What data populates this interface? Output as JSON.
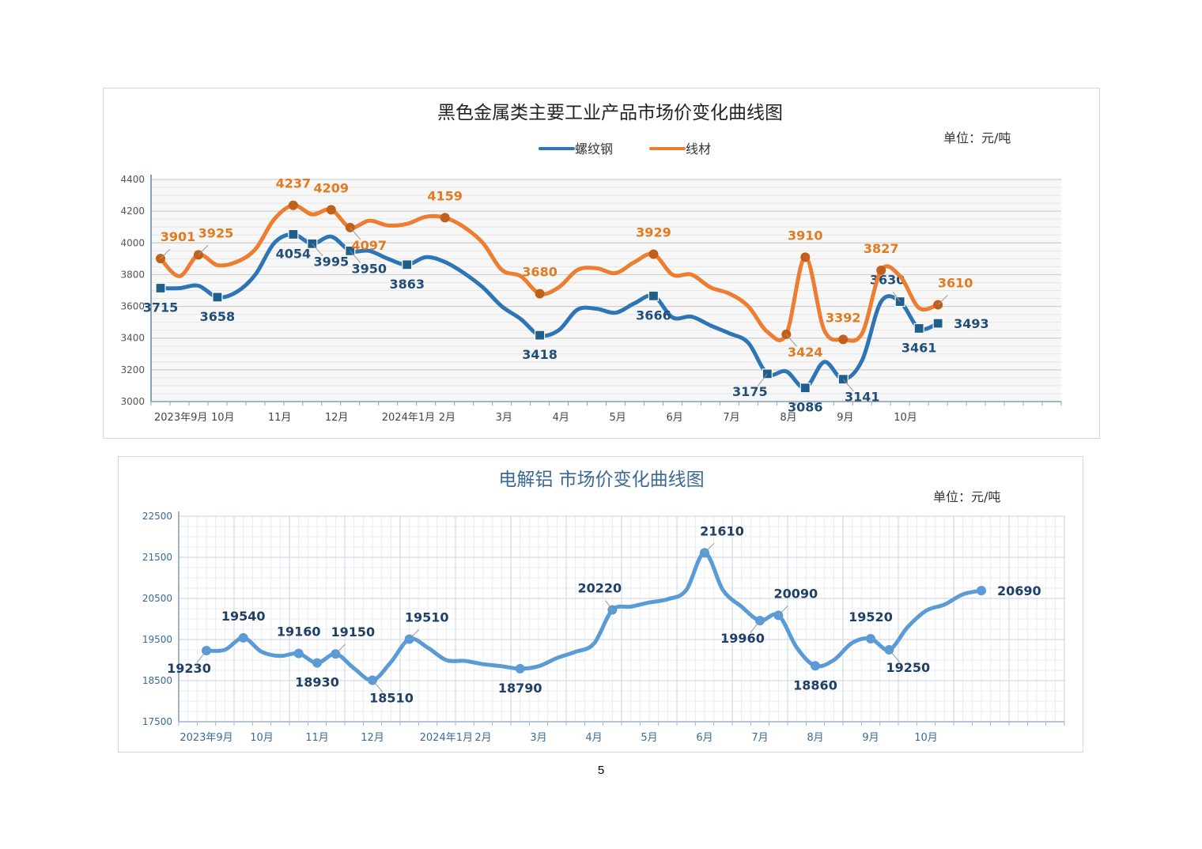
{
  "page_number": "5",
  "chart_data": [
    {
      "type": "line",
      "title": "黑色金属类主要工业产品市场价变化曲线图",
      "unit": "单位：元/吨",
      "ylim": [
        3000,
        4400
      ],
      "yticks": [
        3000,
        3200,
        3400,
        3600,
        3800,
        4000,
        4200,
        4400
      ],
      "xlim": [
        0,
        48
      ],
      "month_ticks": [
        {
          "label": "2023年9月",
          "x": 0
        },
        {
          "label": "10月",
          "x": 3
        },
        {
          "label": "11月",
          "x": 6
        },
        {
          "label": "12月",
          "x": 9
        },
        {
          "label": "2024年1月",
          "x": 12
        },
        {
          "label": "2月",
          "x": 15
        },
        {
          "label": "3月",
          "x": 18
        },
        {
          "label": "4月",
          "x": 21
        },
        {
          "label": "5月",
          "x": 24
        },
        {
          "label": "6月",
          "x": 27
        },
        {
          "label": "7月",
          "x": 30
        },
        {
          "label": "8月",
          "x": 33
        },
        {
          "label": "9月",
          "x": 36
        },
        {
          "label": "10月",
          "x": 39
        }
      ],
      "grid": true,
      "legend": "top-center",
      "series": [
        {
          "name": "螺纹钢",
          "color": "#2e75b6",
          "marker": "square",
          "points": [
            [
              0.5,
              3715
            ],
            [
              1.5,
              3715
            ],
            [
              2.5,
              3730
            ],
            [
              3.5,
              3658
            ],
            [
              4.5,
              3690
            ],
            [
              5.5,
              3800
            ],
            [
              6.5,
              4000
            ],
            [
              7.5,
              4054
            ],
            [
              8.5,
              3995
            ],
            [
              9.5,
              4040
            ],
            [
              10.5,
              3950
            ],
            [
              11.5,
              3950
            ],
            [
              12.5,
              3900
            ],
            [
              13.5,
              3863
            ],
            [
              14.5,
              3910
            ],
            [
              15.5,
              3880
            ],
            [
              16.5,
              3810
            ],
            [
              17.5,
              3720
            ],
            [
              18.5,
              3600
            ],
            [
              19.5,
              3520
            ],
            [
              20.5,
              3418
            ],
            [
              21.5,
              3450
            ],
            [
              22.5,
              3580
            ],
            [
              23.5,
              3585
            ],
            [
              24.5,
              3560
            ],
            [
              25.5,
              3620
            ],
            [
              26.5,
              3666
            ],
            [
              27.5,
              3530
            ],
            [
              28.5,
              3535
            ],
            [
              29.5,
              3480
            ],
            [
              30.5,
              3430
            ],
            [
              31.5,
              3370
            ],
            [
              32.5,
              3175
            ],
            [
              33.5,
              3190
            ],
            [
              34.5,
              3086
            ],
            [
              35.5,
              3250
            ],
            [
              36.5,
              3141
            ],
            [
              37.5,
              3260
            ],
            [
              38.5,
              3630
            ],
            [
              39.5,
              3630
            ],
            [
              40.5,
              3461
            ],
            [
              41.5,
              3493
            ]
          ],
          "labels": [
            {
              "i": 0,
              "text": "3715",
              "pos": "below"
            },
            {
              "i": 3,
              "text": "3658",
              "pos": "below"
            },
            {
              "i": 7,
              "text": "4054",
              "pos": "below"
            },
            {
              "i": 8,
              "text": "3995",
              "pos": "below-right"
            },
            {
              "i": 10,
              "text": "3950",
              "pos": "below-right"
            },
            {
              "i": 13,
              "text": "3863",
              "pos": "below"
            },
            {
              "i": 20,
              "text": "3418",
              "pos": "below"
            },
            {
              "i": 26,
              "text": "3666",
              "pos": "below"
            },
            {
              "i": 32,
              "text": "3175",
              "pos": "below-left"
            },
            {
              "i": 34,
              "text": "3086",
              "pos": "below"
            },
            {
              "i": 36,
              "text": "3141",
              "pos": "below-right"
            },
            {
              "i": 39,
              "text": "3630",
              "pos": "above-left"
            },
            {
              "i": 40,
              "text": "3461",
              "pos": "below"
            },
            {
              "i": 41,
              "text": "3493",
              "pos": "right"
            }
          ]
        },
        {
          "name": "线材",
          "color": "#ed7d31",
          "marker": "circle",
          "points": [
            [
              0.5,
              3901
            ],
            [
              1.5,
              3790
            ],
            [
              2.5,
              3925
            ],
            [
              3.5,
              3860
            ],
            [
              4.5,
              3880
            ],
            [
              5.5,
              3960
            ],
            [
              6.5,
              4150
            ],
            [
              7.5,
              4237
            ],
            [
              8.5,
              4180
            ],
            [
              9.5,
              4209
            ],
            [
              10.5,
              4097
            ],
            [
              11.5,
              4140
            ],
            [
              12.5,
              4110
            ],
            [
              13.5,
              4120
            ],
            [
              14.5,
              4165
            ],
            [
              15.5,
              4159
            ],
            [
              16.5,
              4100
            ],
            [
              17.5,
              4000
            ],
            [
              18.5,
              3830
            ],
            [
              19.5,
              3790
            ],
            [
              20.5,
              3680
            ],
            [
              21.5,
              3720
            ],
            [
              22.5,
              3830
            ],
            [
              23.5,
              3840
            ],
            [
              24.5,
              3810
            ],
            [
              25.5,
              3880
            ],
            [
              26.5,
              3929
            ],
            [
              27.5,
              3800
            ],
            [
              28.5,
              3800
            ],
            [
              29.5,
              3720
            ],
            [
              30.5,
              3680
            ],
            [
              31.5,
              3600
            ],
            [
              32.5,
              3440
            ],
            [
              33.5,
              3424
            ],
            [
              34.5,
              3910
            ],
            [
              35.5,
              3450
            ],
            [
              36.5,
              3392
            ],
            [
              37.5,
              3430
            ],
            [
              38.5,
              3827
            ],
            [
              39.5,
              3790
            ],
            [
              40.5,
              3590
            ],
            [
              41.5,
              3610
            ]
          ],
          "labels": [
            {
              "i": 0,
              "text": "3901",
              "pos": "above-right"
            },
            {
              "i": 2,
              "text": "3925",
              "pos": "above-right"
            },
            {
              "i": 7,
              "text": "4237",
              "pos": "above"
            },
            {
              "i": 9,
              "text": "4209",
              "pos": "above"
            },
            {
              "i": 10,
              "text": "4097",
              "pos": "below-right"
            },
            {
              "i": 15,
              "text": "4159",
              "pos": "above"
            },
            {
              "i": 20,
              "text": "3680",
              "pos": "above"
            },
            {
              "i": 26,
              "text": "3929",
              "pos": "above"
            },
            {
              "i": 33,
              "text": "3424",
              "pos": "below-right"
            },
            {
              "i": 34,
              "text": "3910",
              "pos": "above"
            },
            {
              "i": 36,
              "text": "3392",
              "pos": "above"
            },
            {
              "i": 38,
              "text": "3827",
              "pos": "above"
            },
            {
              "i": 41,
              "text": "3610",
              "pos": "above-right"
            }
          ]
        }
      ]
    },
    {
      "type": "line",
      "title": "电解铝  市场价变化曲线图",
      "unit": "单位：元/吨",
      "ylim": [
        17500,
        22500
      ],
      "yticks": [
        17500,
        18500,
        19500,
        20500,
        21500,
        22500
      ],
      "xlim": [
        0,
        48
      ],
      "month_ticks": [
        {
          "label": "2023年9月",
          "x": 1.5
        },
        {
          "label": "10月",
          "x": 4.5
        },
        {
          "label": "11月",
          "x": 7.5
        },
        {
          "label": "12月",
          "x": 10.5
        },
        {
          "label": "2024年1月",
          "x": 14.5
        },
        {
          "label": "2月",
          "x": 16.5
        },
        {
          "label": "3月",
          "x": 19.5
        },
        {
          "label": "4月",
          "x": 22.5
        },
        {
          "label": "5月",
          "x": 25.5
        },
        {
          "label": "6月",
          "x": 28.5
        },
        {
          "label": "7月",
          "x": 31.5
        },
        {
          "label": "8月",
          "x": 34.5
        },
        {
          "label": "9月",
          "x": 37.5
        },
        {
          "label": "10月",
          "x": 40.5
        }
      ],
      "grid": true,
      "legend": "none",
      "series": [
        {
          "color": "#5b9bd5",
          "marker": "circle",
          "points": [
            [
              1.5,
              19230
            ],
            [
              2.5,
              19250
            ],
            [
              3.5,
              19540
            ],
            [
              4.5,
              19200
            ],
            [
              5.5,
              19100
            ],
            [
              6.5,
              19160
            ],
            [
              7.5,
              18930
            ],
            [
              8.5,
              19150
            ],
            [
              9.5,
              18800
            ],
            [
              10.5,
              18510
            ],
            [
              11.5,
              18950
            ],
            [
              12.5,
              19510
            ],
            [
              13.5,
              19300
            ],
            [
              14.5,
              19000
            ],
            [
              15.5,
              18980
            ],
            [
              16.5,
              18900
            ],
            [
              17.5,
              18850
            ],
            [
              18.5,
              18790
            ],
            [
              19.5,
              18850
            ],
            [
              20.5,
              19050
            ],
            [
              21.5,
              19200
            ],
            [
              22.5,
              19400
            ],
            [
              23.5,
              20220
            ],
            [
              24.5,
              20300
            ],
            [
              25.5,
              20400
            ],
            [
              26.5,
              20480
            ],
            [
              27.5,
              20700
            ],
            [
              28.5,
              21610
            ],
            [
              29.5,
              20700
            ],
            [
              30.5,
              20300
            ],
            [
              31.5,
              19960
            ],
            [
              32.5,
              20090
            ],
            [
              33.5,
              19300
            ],
            [
              34.5,
              18860
            ],
            [
              35.5,
              19000
            ],
            [
              36.5,
              19420
            ],
            [
              37.5,
              19520
            ],
            [
              38.5,
              19250
            ],
            [
              39.5,
              19800
            ],
            [
              40.5,
              20200
            ],
            [
              41.5,
              20350
            ],
            [
              42.5,
              20600
            ],
            [
              43.5,
              20690
            ]
          ],
          "labels": [
            {
              "i": 0,
              "text": "19230",
              "pos": "below-left"
            },
            {
              "i": 2,
              "text": "19540",
              "pos": "above"
            },
            {
              "i": 5,
              "text": "19160",
              "pos": "above"
            },
            {
              "i": 6,
              "text": "18930",
              "pos": "below"
            },
            {
              "i": 7,
              "text": "19150",
              "pos": "above-right"
            },
            {
              "i": 9,
              "text": "18510",
              "pos": "below-right"
            },
            {
              "i": 11,
              "text": "19510",
              "pos": "above-right"
            },
            {
              "i": 17,
              "text": "18790",
              "pos": "below"
            },
            {
              "i": 22,
              "text": "20220",
              "pos": "above-left"
            },
            {
              "i": 27,
              "text": "21610",
              "pos": "above-right"
            },
            {
              "i": 30,
              "text": "19960",
              "pos": "below-left"
            },
            {
              "i": 31,
              "text": "20090",
              "pos": "above-right"
            },
            {
              "i": 33,
              "text": "18860",
              "pos": "below"
            },
            {
              "i": 36,
              "text": "19520",
              "pos": "above"
            },
            {
              "i": 37,
              "text": "19250",
              "pos": "below-right"
            },
            {
              "i": 42,
              "text": "20690",
              "pos": "right"
            }
          ]
        }
      ]
    }
  ]
}
